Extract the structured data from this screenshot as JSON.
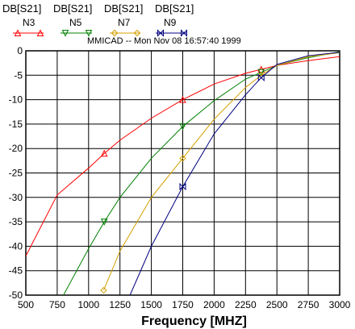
{
  "header": {
    "labels": [
      "DB[S21]",
      "DB[S21]",
      "DB[S21]",
      "DB[S21]"
    ],
    "timestamp": "MMICAD -- Mon Nov 08 16:57:40 1999"
  },
  "chart_data": {
    "type": "line",
    "xlabel": "Frequency [MHZ]",
    "ylabel": "",
    "xlim": [
      500,
      3000
    ],
    "ylim": [
      -50,
      0
    ],
    "x_ticks": [
      "500",
      "750",
      "1000",
      "1250",
      "1500",
      "1750",
      "2000",
      "2250",
      "2500",
      "2750",
      "3000"
    ],
    "y_ticks": [
      "0",
      "-5",
      "-10",
      "-15",
      "-20",
      "-25",
      "-30",
      "-35",
      "-40",
      "-45",
      "-50"
    ],
    "grid": true,
    "legend_position": "top-left",
    "series": [
      {
        "name": "N3",
        "color": "#ff0000",
        "marker": "triangle-up",
        "x": [
          500,
          750,
          1000,
          1125,
          1250,
          1500,
          1750,
          2000,
          2250,
          2375,
          2500,
          2750,
          3000
        ],
        "y": [
          -42,
          -29.5,
          -24,
          -21,
          -18.3,
          -13.8,
          -10,
          -6.8,
          -4.6,
          -3.8,
          -3.0,
          -2.0,
          -1.2
        ]
      },
      {
        "name": "N5",
        "color": "#008000",
        "marker": "triangle-down",
        "x": [
          800,
          1000,
          1125,
          1250,
          1500,
          1750,
          2000,
          2250,
          2375,
          2500,
          2750,
          3000
        ],
        "y": [
          -50,
          -40.5,
          -35,
          -30,
          -22,
          -15.5,
          -10.2,
          -5.8,
          -4.4,
          -3.0,
          -1.4,
          -0.2
        ]
      },
      {
        "name": "N7",
        "color": "#d4a000",
        "marker": "diamond",
        "x": [
          1120,
          1250,
          1500,
          1750,
          2000,
          2250,
          2375,
          2500,
          2750,
          3000
        ],
        "y": [
          -49,
          -41,
          -30,
          -22,
          -14,
          -7.5,
          -5,
          -3,
          -1.2,
          -0.4
        ]
      },
      {
        "name": "N9",
        "color": "#000080",
        "marker": "bowtie",
        "x": [
          1330,
          1500,
          1750,
          2000,
          2250,
          2375,
          2500,
          2750,
          3000
        ],
        "y": [
          -50,
          -40,
          -27.8,
          -17,
          -9,
          -5.5,
          -2.8,
          -1,
          -0.3
        ]
      }
    ]
  }
}
